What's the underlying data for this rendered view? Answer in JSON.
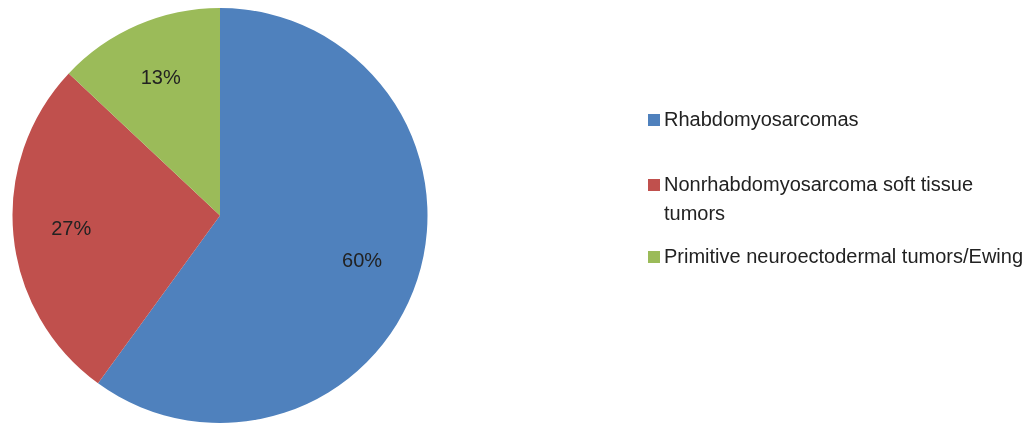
{
  "chart_data": {
    "type": "pie",
    "categories": [
      "Rhabdomyosarcomas",
      "Nonrhabdomyosarcoma soft tissue tumors",
      "Primitive neuroectodermal tumors/Ewing"
    ],
    "values": [
      60,
      27,
      13
    ],
    "colors": [
      "#4f81bd",
      "#c0504d",
      "#9bbb59"
    ],
    "value_labels": [
      "60%",
      "27%",
      "13%"
    ],
    "legend": "right"
  }
}
